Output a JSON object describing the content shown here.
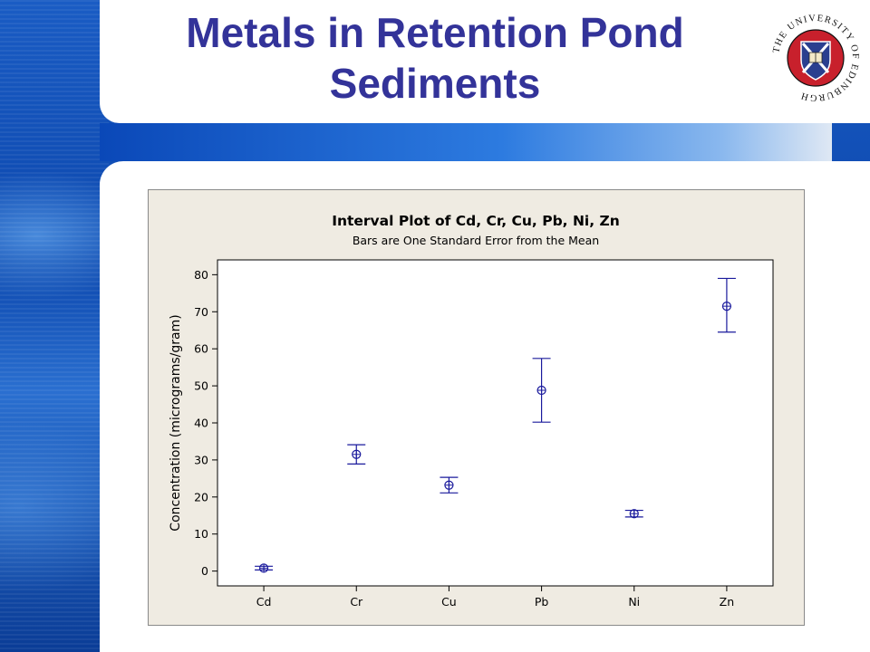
{
  "slide": {
    "title_line1": "Metals in Retention Pond",
    "title_line2": "Sediments"
  },
  "logo": {
    "text": "THE UNIVERSITY OF EDINBURGH",
    "icon": "university-crest-icon"
  },
  "colors": {
    "title": "#333399",
    "chart_background": "#efebe2",
    "series": "#1a1a9c"
  },
  "chart_data": {
    "type": "interval",
    "title": "Interval Plot of Cd, Cr, Cu, Pb, Ni, Zn",
    "subtitle": "Bars are One Standard Error from the Mean",
    "xlabel": "",
    "ylabel": "Concentration (micrograms/gram)",
    "ylim": [
      -4,
      84
    ],
    "yticks": [
      0,
      10,
      20,
      30,
      40,
      50,
      60,
      70,
      80
    ],
    "grid": false,
    "categories": [
      "Cd",
      "Cr",
      "Cu",
      "Pb",
      "Ni",
      "Zn"
    ],
    "mean": [
      0.8,
      31.5,
      23.2,
      48.8,
      15.5,
      71.5
    ],
    "lower": [
      0.3,
      28.9,
      21.1,
      40.2,
      14.6,
      64.5
    ],
    "upper": [
      1.3,
      34.1,
      25.3,
      57.4,
      16.4,
      79.0
    ]
  }
}
